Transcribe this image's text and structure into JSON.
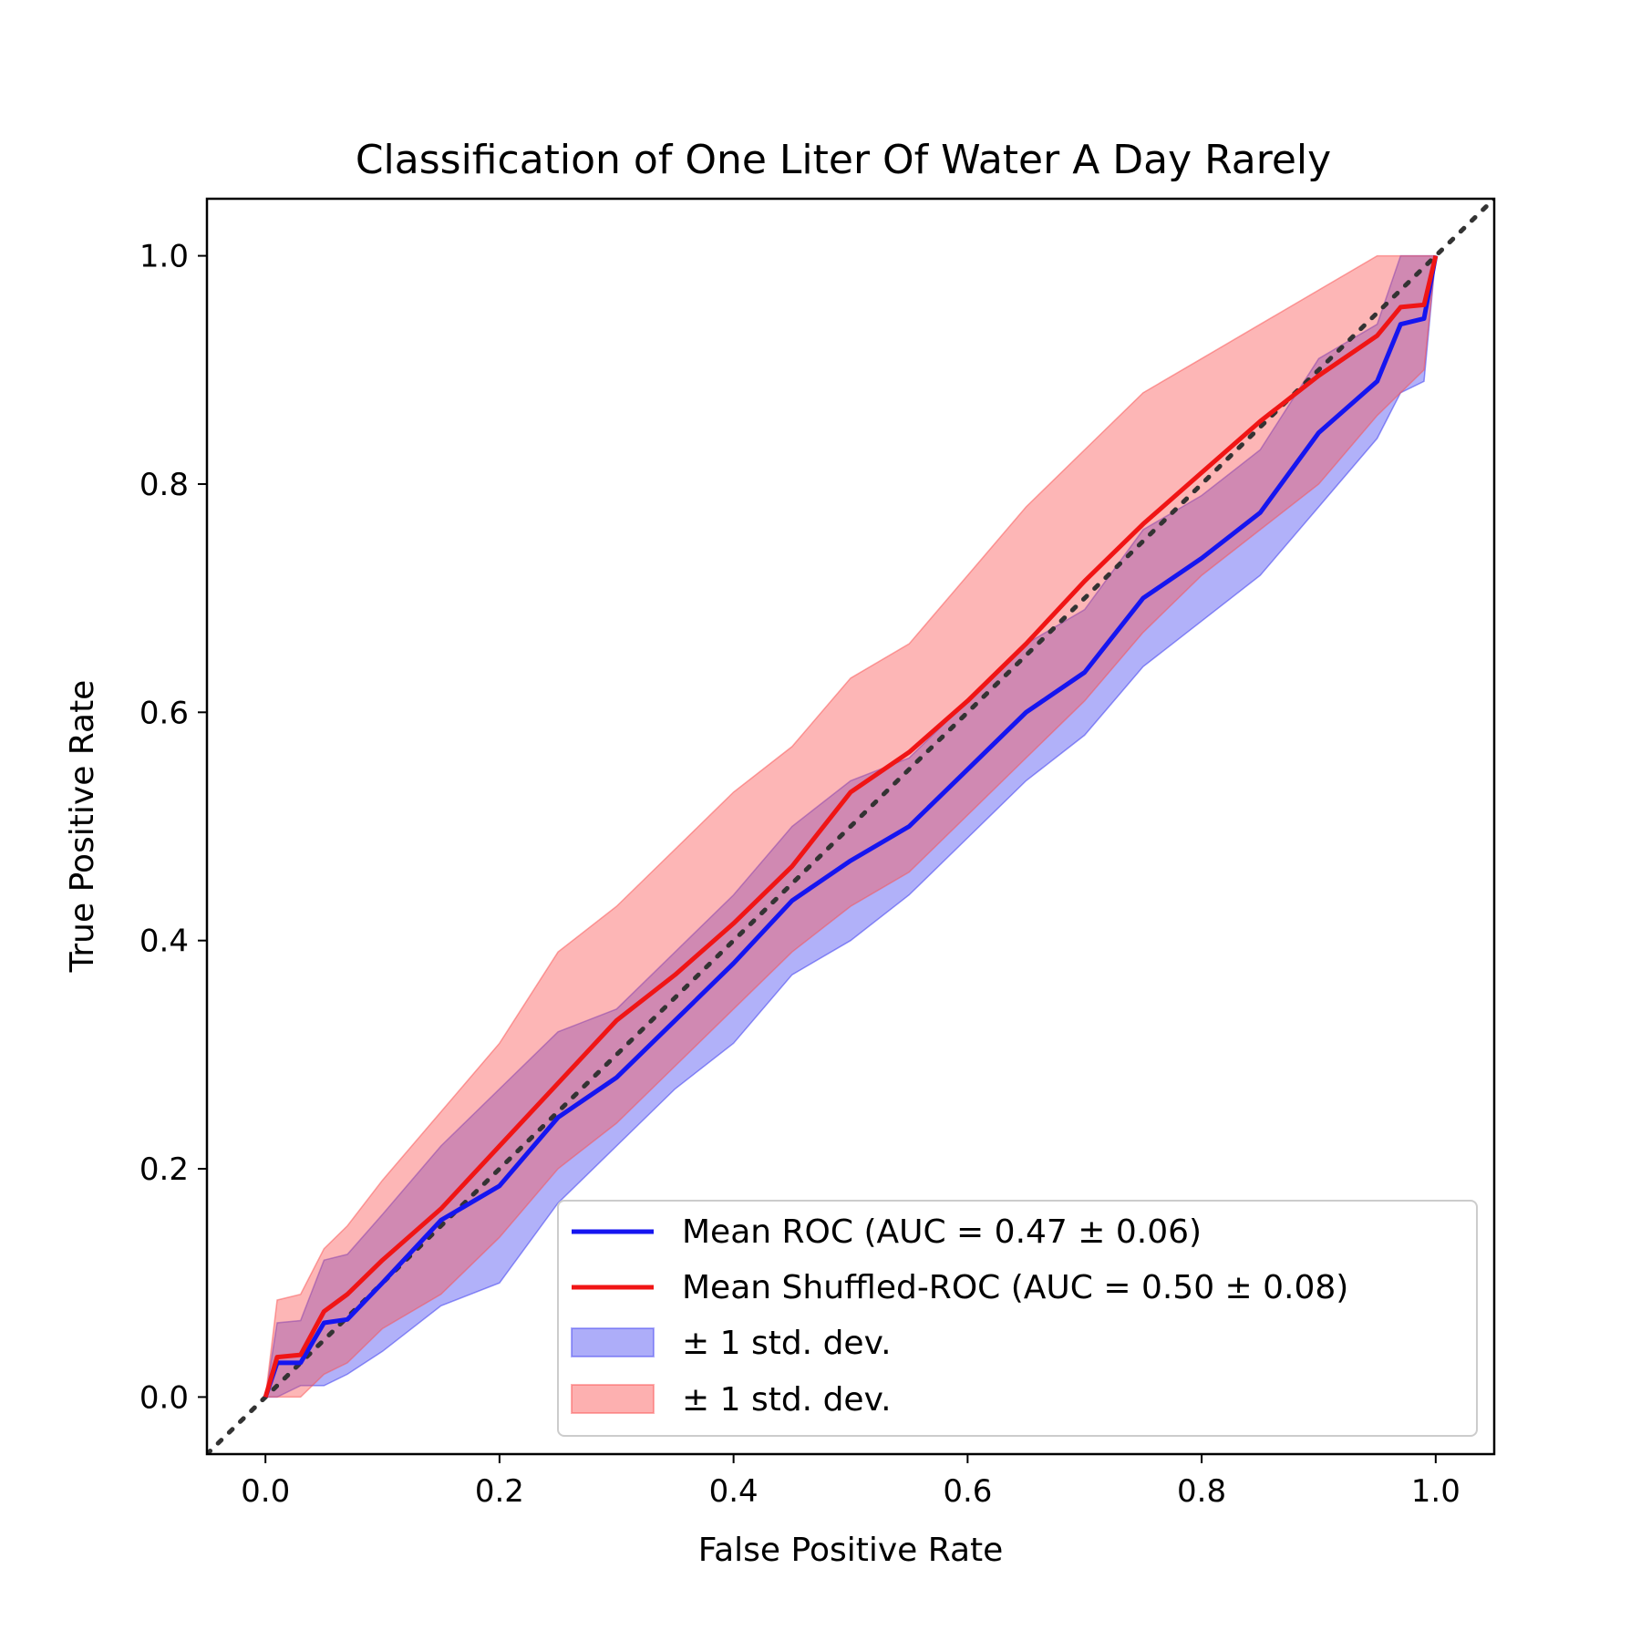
{
  "chart_data": {
    "type": "line",
    "title": "Classification of One Liter Of Water A Day Rarely",
    "xlabel": "False Positive Rate",
    "ylabel": "True Positive Rate",
    "xlim": [
      -0.05,
      1.05
    ],
    "ylim": [
      -0.05,
      1.05
    ],
    "xticks": [
      "0.0",
      "0.2",
      "0.4",
      "0.6",
      "0.8",
      "1.0"
    ],
    "yticks": [
      "0.0",
      "0.2",
      "0.4",
      "0.6",
      "0.8",
      "1.0"
    ],
    "legend_position": "lower-right",
    "x": [
      0,
      0.01,
      0.03,
      0.05,
      0.07,
      0.1,
      0.15,
      0.2,
      0.25,
      0.3,
      0.35,
      0.4,
      0.45,
      0.5,
      0.55,
      0.6,
      0.65,
      0.7,
      0.75,
      0.8,
      0.85,
      0.9,
      0.95,
      0.97,
      0.99,
      1.0
    ],
    "series": [
      {
        "name": "Mean ROC (AUC = 0.47 ± 0.06)",
        "color": "#1515f0",
        "values": [
          0,
          0.03,
          0.03,
          0.065,
          0.068,
          0.1,
          0.155,
          0.185,
          0.245,
          0.28,
          0.33,
          0.38,
          0.435,
          0.47,
          0.5,
          0.55,
          0.6,
          0.635,
          0.7,
          0.735,
          0.775,
          0.845,
          0.89,
          0.94,
          0.945,
          1.0
        ]
      },
      {
        "name": "Mean Shuffled-ROC (AUC = 0.50 ± 0.08)",
        "color": "#f01515",
        "values": [
          0,
          0.035,
          0.037,
          0.075,
          0.09,
          0.12,
          0.165,
          0.22,
          0.275,
          0.33,
          0.37,
          0.415,
          0.465,
          0.53,
          0.565,
          0.61,
          0.66,
          0.715,
          0.765,
          0.81,
          0.855,
          0.895,
          0.93,
          0.955,
          0.957,
          1.0
        ]
      }
    ],
    "bands": [
      {
        "name": "± 1 std. dev.",
        "color": "#3232f0",
        "lower": [
          0,
          0.0,
          0.01,
          0.01,
          0.02,
          0.04,
          0.08,
          0.1,
          0.17,
          0.22,
          0.27,
          0.31,
          0.37,
          0.4,
          0.44,
          0.49,
          0.54,
          0.58,
          0.64,
          0.68,
          0.72,
          0.78,
          0.84,
          0.88,
          0.89,
          1.0
        ],
        "upper": [
          0,
          0.065,
          0.067,
          0.12,
          0.125,
          0.16,
          0.22,
          0.27,
          0.32,
          0.34,
          0.39,
          0.44,
          0.5,
          0.54,
          0.56,
          0.61,
          0.66,
          0.69,
          0.76,
          0.79,
          0.83,
          0.91,
          0.94,
          1.0,
          1.0,
          1.0
        ]
      },
      {
        "name": "± 1 std. dev.",
        "color": "#fa5050",
        "lower": [
          0,
          0.0,
          0.0,
          0.02,
          0.03,
          0.06,
          0.09,
          0.14,
          0.2,
          0.24,
          0.29,
          0.34,
          0.39,
          0.43,
          0.46,
          0.51,
          0.56,
          0.61,
          0.67,
          0.72,
          0.76,
          0.8,
          0.86,
          0.88,
          0.9,
          1.0
        ],
        "upper": [
          0,
          0.085,
          0.09,
          0.13,
          0.15,
          0.19,
          0.25,
          0.31,
          0.39,
          0.43,
          0.48,
          0.53,
          0.57,
          0.63,
          0.66,
          0.72,
          0.78,
          0.83,
          0.88,
          0.91,
          0.94,
          0.97,
          1.0,
          1.0,
          1.0,
          1.0
        ]
      }
    ],
    "diagonal": {
      "color": "#333333",
      "style": "dotted"
    }
  }
}
